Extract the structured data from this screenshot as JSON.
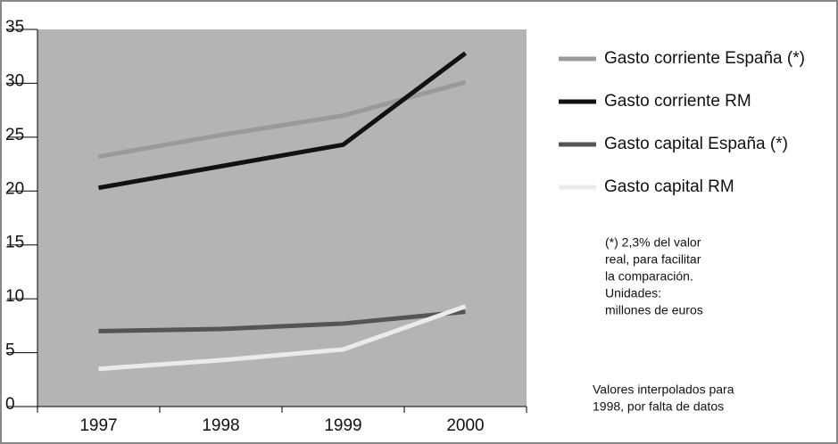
{
  "chart_data": {
    "type": "line",
    "categories": [
      "1997",
      "1998",
      "1999",
      "2000"
    ],
    "series": [
      {
        "name": "Gasto corriente España (*)",
        "color": "#9a9a9a",
        "values": [
          23.2,
          25.2,
          27.0,
          30.1
        ]
      },
      {
        "name": "Gasto corriente RM",
        "color": "#111111",
        "values": [
          20.3,
          22.3,
          24.3,
          32.8
        ]
      },
      {
        "name": "Gasto capital España (*)",
        "color": "#555555",
        "values": [
          7.0,
          7.2,
          7.7,
          8.8
        ]
      },
      {
        "name": "Gasto capital RM",
        "color": "#ebebeb",
        "values": [
          3.5,
          4.3,
          5.3,
          9.3
        ]
      }
    ],
    "ylim": [
      0,
      35
    ],
    "yticks": [
      0,
      5,
      10,
      15,
      20,
      25,
      30,
      35
    ],
    "plot_background": "#b4b4b4",
    "annotations": [
      [
        "(*) 2,3% del valor",
        "real, para facilitar",
        "la comparación.",
        "Unidades:",
        "millones de euros"
      ],
      [
        "Valores interpolados para",
        "1998, por falta de datos"
      ]
    ]
  }
}
